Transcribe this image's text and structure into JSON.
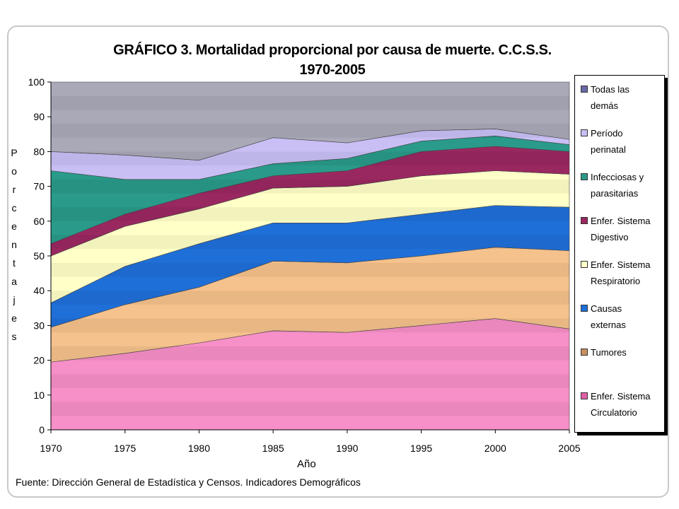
{
  "chart_data": {
    "type": "area",
    "stacked": true,
    "title": "GRÁFICO 3. Mortalidad proporcional por causa de muerte. C.C.S.S.",
    "subtitle": "1970-2005",
    "xlabel": "Año",
    "ylabel": "Porcentajes",
    "x": [
      1970,
      1975,
      1980,
      1985,
      1990,
      1995,
      2000,
      2005
    ],
    "xticks": [
      "1970",
      "1975",
      "1980",
      "1985",
      "1990",
      "1995",
      "2000",
      "2005"
    ],
    "yticks": [
      "0",
      "10",
      "20",
      "30",
      "40",
      "50",
      "60",
      "70",
      "80",
      "90",
      "100"
    ],
    "ylim": [
      0,
      100
    ],
    "legend_position": "right",
    "series": [
      {
        "name": "Enfer. Sistema Circulatorio",
        "color": "#f78fc8",
        "values": [
          19.5,
          22,
          25,
          28.5,
          28,
          30,
          32,
          29
        ]
      },
      {
        "name": "Tumores",
        "color": "#f5c18c",
        "values": [
          10,
          14,
          16,
          20,
          20,
          20,
          20.5,
          22.5
        ]
      },
      {
        "name": "Causas externas",
        "color": "#1f6fd8",
        "values": [
          7,
          11,
          12.5,
          11,
          11.5,
          12,
          12,
          12.5
        ]
      },
      {
        "name": "Enfer. Sistema Respiratorio",
        "color": "#ffffc8",
        "values": [
          13.5,
          11.5,
          10,
          10,
          10.5,
          11,
          10,
          9.5
        ]
      },
      {
        "name": "Enfer. Sistema Digestivo",
        "color": "#9a2860",
        "values": [
          3.5,
          3.5,
          4.5,
          3.5,
          4.5,
          7,
          7,
          6.5
        ]
      },
      {
        "name": "Infecciosas y parasitarias",
        "color": "#2a9a8a",
        "values": [
          21,
          10,
          4,
          3.5,
          3.5,
          3,
          3,
          2
        ]
      },
      {
        "name": "Período perinatal",
        "color": "#c9bff5",
        "values": [
          5.5,
          7,
          5.5,
          7.5,
          4.5,
          3,
          2,
          1.5
        ]
      },
      {
        "name": "Todas las demás",
        "color": "#a9a9b8",
        "values": [
          20,
          21,
          22.5,
          16,
          17.5,
          14,
          13.5,
          16.5
        ]
      }
    ],
    "source": "Fuente: Dirección General de Estadística y Censos. Indicadores Demográficos"
  },
  "legend": [
    {
      "line1": "Todas las",
      "line2": "demás",
      "color": "#6a6aa8"
    },
    {
      "line1": "Período",
      "line2": "perinatal",
      "color": "#c9bff5"
    },
    {
      "line1": "Infecciosas y",
      "line2": "parasitarias",
      "color": "#2a9a8a"
    },
    {
      "line1": "Enfer. Sistema",
      "line2": "Digestivo",
      "color": "#9a2860"
    },
    {
      "line1": "Enfer. Sistema",
      "line2": "Respiratorio",
      "color": "#ffffc8"
    },
    {
      "line1": "Causas",
      "line2": "externas",
      "color": "#1f6fd8"
    },
    {
      "line1": "Tumores",
      "line2": "",
      "color": "#c89060"
    },
    {
      "line1": "Enfer. Sistema",
      "line2": "Circulatorio",
      "color": "#e060a8"
    }
  ],
  "ylabel_letters": [
    "P",
    "o",
    "r",
    "c",
    "e",
    "n",
    "t",
    "a",
    "j",
    "e",
    "s"
  ]
}
